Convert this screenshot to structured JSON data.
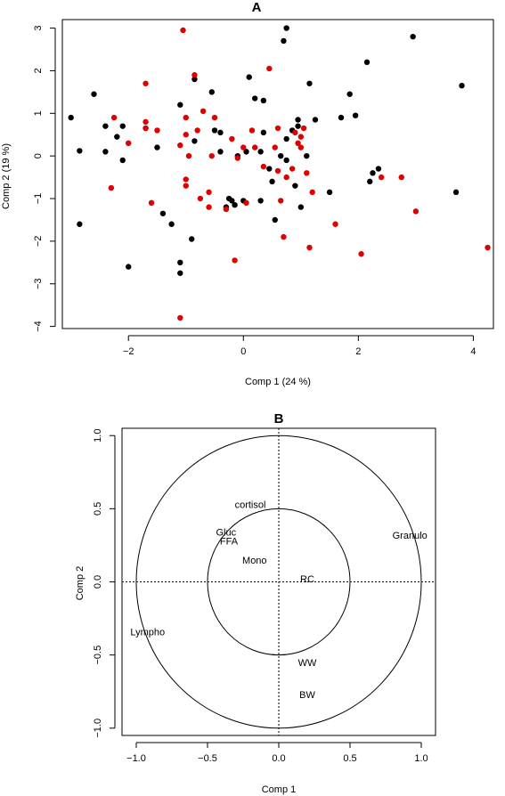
{
  "colors": {
    "black_group": "#000000",
    "red_group": "#e00000",
    "axes": "#000000",
    "background": "#ffffff"
  },
  "chart_data": [
    {
      "type": "scatter",
      "title": "A",
      "xlabel": "Comp 1 (24 %)",
      "ylabel": "Comp 2 (19 %)",
      "xlim": [
        -3.15,
        4.35
      ],
      "ylim": [
        -4.05,
        3.2
      ],
      "xticks": [
        -2,
        0,
        2,
        4
      ],
      "yticks": [
        -4,
        -3,
        -2,
        -1,
        0,
        1,
        2,
        3
      ],
      "grid": false,
      "series": [
        {
          "color": "#000000",
          "points": [
            [
              -3.0,
              0.9
            ],
            [
              -2.85,
              0.12
            ],
            [
              -2.85,
              -1.6
            ],
            [
              -2.6,
              1.45
            ],
            [
              -2.4,
              0.7
            ],
            [
              -2.2,
              0.45
            ],
            [
              -2.4,
              0.1
            ],
            [
              -2.1,
              0.7
            ],
            [
              -2.1,
              -0.1
            ],
            [
              -2.0,
              -2.6
            ],
            [
              -1.7,
              0.65
            ],
            [
              -1.5,
              0.2
            ],
            [
              -1.4,
              -1.35
            ],
            [
              -1.25,
              -1.6
            ],
            [
              -1.1,
              -2.5
            ],
            [
              -1.1,
              -2.75
            ],
            [
              -1.1,
              1.2
            ],
            [
              -0.9,
              -1.95
            ],
            [
              -0.85,
              0.35
            ],
            [
              -0.85,
              1.8
            ],
            [
              -0.55,
              1.5
            ],
            [
              -0.5,
              0.6
            ],
            [
              -0.4,
              0.55
            ],
            [
              -0.4,
              0.1
            ],
            [
              -0.3,
              -1.2
            ],
            [
              -0.25,
              -1.0
            ],
            [
              -0.2,
              -1.05
            ],
            [
              -0.15,
              -1.15
            ],
            [
              -0.1,
              0.0
            ],
            [
              0.0,
              -1.05
            ],
            [
              0.05,
              0.1
            ],
            [
              0.1,
              1.85
            ],
            [
              0.2,
              1.35
            ],
            [
              0.3,
              -1.05
            ],
            [
              0.3,
              0.1
            ],
            [
              0.35,
              0.55
            ],
            [
              0.35,
              1.3
            ],
            [
              0.45,
              -0.3
            ],
            [
              0.5,
              -0.6
            ],
            [
              0.55,
              -1.5
            ],
            [
              0.65,
              0.0
            ],
            [
              0.7,
              2.7
            ],
            [
              0.75,
              3.0
            ],
            [
              0.75,
              0.4
            ],
            [
              0.75,
              -0.1
            ],
            [
              0.85,
              0.6
            ],
            [
              0.9,
              -0.7
            ],
            [
              0.95,
              0.85
            ],
            [
              0.95,
              0.7
            ],
            [
              1.0,
              -1.2
            ],
            [
              1.1,
              0.0
            ],
            [
              1.15,
              1.7
            ],
            [
              1.25,
              0.85
            ],
            [
              1.5,
              -0.85
            ],
            [
              1.7,
              0.9
            ],
            [
              1.85,
              1.45
            ],
            [
              1.95,
              0.95
            ],
            [
              2.15,
              2.2
            ],
            [
              2.2,
              -0.6
            ],
            [
              2.25,
              -0.4
            ],
            [
              2.35,
              -0.3
            ],
            [
              2.95,
              2.8
            ],
            [
              3.7,
              -0.85
            ],
            [
              3.8,
              1.65
            ]
          ]
        },
        {
          "color": "#e00000",
          "points": [
            [
              -2.25,
              0.9
            ],
            [
              -2.3,
              -0.75
            ],
            [
              -2.0,
              0.3
            ],
            [
              -1.7,
              1.7
            ],
            [
              -1.7,
              0.8
            ],
            [
              -1.7,
              0.65
            ],
            [
              -1.6,
              -1.1
            ],
            [
              -1.5,
              0.6
            ],
            [
              -1.1,
              -3.8
            ],
            [
              -1.1,
              0.25
            ],
            [
              -1.05,
              2.95
            ],
            [
              -1.0,
              0.9
            ],
            [
              -1.0,
              0.5
            ],
            [
              -1.0,
              -0.55
            ],
            [
              -1.0,
              -0.7
            ],
            [
              -0.95,
              0.0
            ],
            [
              -0.85,
              1.9
            ],
            [
              -0.8,
              0.6
            ],
            [
              -0.75,
              -1.0
            ],
            [
              -0.7,
              1.05
            ],
            [
              -0.6,
              -0.85
            ],
            [
              -0.6,
              -1.2
            ],
            [
              -0.55,
              0.0
            ],
            [
              -0.5,
              0.9
            ],
            [
              -0.3,
              -1.25
            ],
            [
              -0.2,
              0.4
            ],
            [
              -0.15,
              -2.45
            ],
            [
              -0.1,
              -0.05
            ],
            [
              0.0,
              0.2
            ],
            [
              0.05,
              -1.1
            ],
            [
              0.15,
              0.6
            ],
            [
              0.2,
              0.2
            ],
            [
              0.35,
              -0.25
            ],
            [
              0.45,
              2.05
            ],
            [
              0.55,
              0.2
            ],
            [
              0.6,
              0.65
            ],
            [
              0.6,
              -0.35
            ],
            [
              0.65,
              -1.05
            ],
            [
              0.7,
              -1.9
            ],
            [
              0.75,
              -0.5
            ],
            [
              0.85,
              -0.3
            ],
            [
              0.9,
              0.55
            ],
            [
              0.95,
              0.3
            ],
            [
              1.0,
              0.45
            ],
            [
              1.0,
              0.2
            ],
            [
              1.05,
              0.65
            ],
            [
              1.1,
              -0.4
            ],
            [
              1.15,
              -2.15
            ],
            [
              1.2,
              -0.85
            ],
            [
              1.6,
              -1.6
            ],
            [
              2.05,
              -2.3
            ],
            [
              2.4,
              -0.5
            ],
            [
              2.75,
              -0.5
            ],
            [
              3.0,
              -1.3
            ],
            [
              4.25,
              -2.15
            ]
          ]
        }
      ]
    },
    {
      "type": "scatter",
      "title": "B",
      "xlabel": "Comp 1",
      "ylabel": "Comp 2",
      "xlim": [
        -1.1,
        1.1
      ],
      "ylim": [
        -1.05,
        1.05
      ],
      "xticks": [
        -1.0,
        -0.5,
        0.0,
        0.5,
        1.0
      ],
      "yticks": [
        -1.0,
        -0.5,
        0.0,
        0.5,
        1.0
      ],
      "grid": false,
      "circles": [
        1.0,
        0.5
      ],
      "variables": [
        {
          "name": "cortisol",
          "x": -0.2,
          "y": 0.53
        },
        {
          "name": "Gluc",
          "x": -0.37,
          "y": 0.34
        },
        {
          "name": "FFA",
          "x": -0.35,
          "y": 0.28
        },
        {
          "name": "Granulo",
          "x": 0.92,
          "y": 0.32
        },
        {
          "name": "Mono",
          "x": -0.17,
          "y": 0.15
        },
        {
          "name": "RC",
          "x": 0.2,
          "y": 0.02
        },
        {
          "name": "Lympho",
          "x": -0.92,
          "y": -0.34
        },
        {
          "name": "WW",
          "x": 0.2,
          "y": -0.55
        },
        {
          "name": "BW",
          "x": 0.2,
          "y": -0.77
        }
      ]
    }
  ]
}
